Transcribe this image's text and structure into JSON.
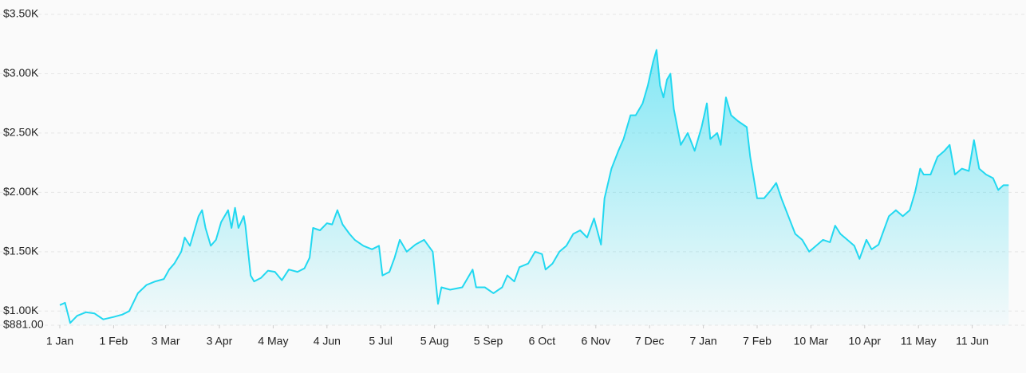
{
  "chart_data": {
    "type": "area",
    "color": "#22d8f0",
    "grid": true,
    "x": [
      0,
      3,
      6,
      10,
      15,
      20,
      25,
      31,
      36,
      40,
      45,
      50,
      55,
      60,
      63,
      66,
      70,
      72,
      75,
      78,
      80,
      82,
      84,
      87,
      90,
      93,
      95,
      97,
      99,
      101,
      103,
      106,
      107,
      110,
      112,
      116,
      120,
      124,
      128,
      132,
      137,
      141,
      144,
      146,
      150,
      154,
      157,
      160,
      163,
      167,
      170,
      175,
      180,
      184,
      186,
      190,
      193,
      196,
      200,
      205,
      210,
      215,
      218,
      220,
      225,
      232,
      238,
      240,
      245,
      250,
      255,
      258,
      262,
      265,
      270,
      274,
      278,
      280,
      284,
      288,
      292,
      296,
      300,
      304,
      308,
      312,
      314,
      318,
      322,
      325,
      329,
      332,
      336,
      339,
      342,
      344,
      346,
      348,
      350,
      352,
      354,
      358,
      362,
      366,
      370,
      373,
      375,
      379,
      381,
      384,
      387,
      391,
      396,
      398,
      402,
      406,
      410,
      413,
      416,
      420,
      424,
      428,
      432,
      436,
      440,
      444,
      447,
      450,
      454,
      458,
      461,
      465,
      468,
      472,
      475,
      478,
      482,
      486,
      490,
      493,
      496,
      498,
      502,
      506,
      510,
      513,
      516,
      520,
      524,
      527,
      530,
      534,
      538,
      541,
      544,
      547
    ],
    "values": [
      1050,
      1070,
      900,
      960,
      990,
      980,
      930,
      950,
      970,
      1000,
      1150,
      1220,
      1250,
      1270,
      1350,
      1400,
      1500,
      1620,
      1550,
      1700,
      1800,
      1850,
      1700,
      1550,
      1600,
      1750,
      1800,
      1850,
      1700,
      1870,
      1700,
      1800,
      1720,
      1300,
      1250,
      1280,
      1340,
      1330,
      1260,
      1350,
      1330,
      1360,
      1450,
      1700,
      1680,
      1740,
      1730,
      1850,
      1730,
      1650,
      1600,
      1550,
      1520,
      1550,
      1300,
      1330,
      1450,
      1600,
      1500,
      1560,
      1600,
      1500,
      1060,
      1200,
      1180,
      1200,
      1350,
      1200,
      1200,
      1150,
      1200,
      1300,
      1250,
      1370,
      1400,
      1500,
      1480,
      1350,
      1400,
      1500,
      1550,
      1650,
      1680,
      1620,
      1780,
      1560,
      1950,
      2200,
      2350,
      2450,
      2650,
      2650,
      2750,
      2900,
      3100,
      3200,
      2900,
      2800,
      2950,
      3000,
      2700,
      2400,
      2500,
      2350,
      2550,
      2750,
      2450,
      2500,
      2400,
      2800,
      2650,
      2600,
      2550,
      2300,
      1950,
      1950,
      2020,
      2080,
      1950,
      1800,
      1650,
      1600,
      1500,
      1550,
      1600,
      1580,
      1720,
      1650,
      1600,
      1550,
      1440,
      1600,
      1520,
      1560,
      1680,
      1800,
      1850,
      1800,
      1850,
      2000,
      2200,
      2150,
      2150,
      2300,
      2350,
      2400,
      2150,
      2200,
      2180,
      2440,
      2200,
      2150,
      2120,
      2020,
      2060,
      2060
    ],
    "xlim": [
      0,
      557
    ],
    "xticks": [
      {
        "value": 0,
        "label": "1 Jan"
      },
      {
        "value": 31,
        "label": "1 Feb"
      },
      {
        "value": 61,
        "label": "3 Mar"
      },
      {
        "value": 92,
        "label": "3 Apr"
      },
      {
        "value": 123,
        "label": "4 May"
      },
      {
        "value": 154,
        "label": "4 Jun"
      },
      {
        "value": 185,
        "label": "5 Jul"
      },
      {
        "value": 216,
        "label": "5 Aug"
      },
      {
        "value": 247,
        "label": "5 Sep"
      },
      {
        "value": 278,
        "label": "6 Oct"
      },
      {
        "value": 309,
        "label": "6 Nov"
      },
      {
        "value": 340,
        "label": "7 Dec"
      },
      {
        "value": 371,
        "label": "7 Jan"
      },
      {
        "value": 402,
        "label": "7 Feb"
      },
      {
        "value": 433,
        "label": "10 Mar"
      },
      {
        "value": 464,
        "label": "10 Apr"
      },
      {
        "value": 495,
        "label": "11 May"
      },
      {
        "value": 526,
        "label": "11 Jun"
      }
    ],
    "ylim": [
      881,
      3500
    ],
    "yticks": [
      {
        "value": 881,
        "label": "$881.00"
      },
      {
        "value": 1000,
        "label": "$1.00K"
      },
      {
        "value": 1500,
        "label": "$1.50K"
      },
      {
        "value": 2000,
        "label": "$2.00K"
      },
      {
        "value": 2500,
        "label": "$2.50K"
      },
      {
        "value": 3000,
        "label": "$3.00K"
      },
      {
        "value": 3500,
        "label": "$3.50K"
      }
    ]
  }
}
